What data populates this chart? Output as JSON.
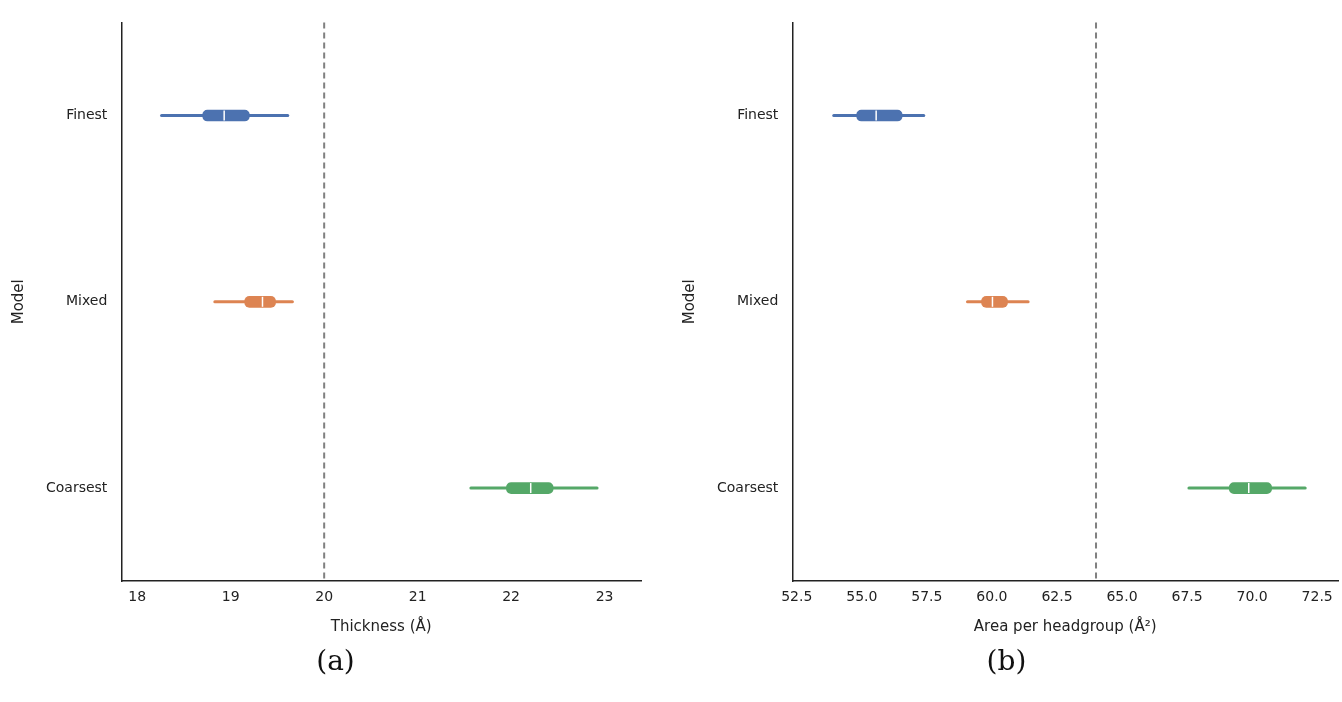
{
  "chart_data": [
    {
      "type": "box",
      "orientation": "horizontal",
      "title": "(a)",
      "xlabel": "Thickness (Å)",
      "ylabel": "Model",
      "categories": [
        "Finest",
        "Mixed",
        "Coarsest"
      ],
      "series": [
        {
          "color": "#4c72b0",
          "boxes": [
            {
              "low": 18.26,
              "q1": 18.7,
              "median": 18.93,
              "q3": 19.2,
              "high": 19.61
            },
            null,
            null
          ]
        },
        {
          "color": "#dd8452",
          "boxes": [
            null,
            {
              "low": 18.83,
              "q1": 19.15,
              "median": 19.34,
              "q3": 19.48,
              "high": 19.66
            },
            null
          ]
        },
        {
          "color": "#55a868",
          "boxes": [
            null,
            null,
            {
              "low": 21.57,
              "q1": 21.95,
              "median": 22.21,
              "q3": 22.45,
              "high": 22.92
            }
          ]
        }
      ],
      "xlim": [
        17.83,
        23.39
      ],
      "xticks": [
        18,
        19,
        20,
        21,
        22,
        23
      ],
      "ref_lines": [
        {
          "axis": "x",
          "value": 20,
          "color": "#808080",
          "line_style": "dashed"
        }
      ],
      "grid": false,
      "legend": false
    },
    {
      "type": "box",
      "orientation": "horizontal",
      "title": "(b)",
      "xlabel": "Area per headgroup (Å²)",
      "ylabel": "Model",
      "categories": [
        "Finest",
        "Mixed",
        "Coarsest"
      ],
      "series": [
        {
          "color": "#4c72b0",
          "boxes": [
            {
              "low": 53.92,
              "q1": 54.8,
              "median": 55.55,
              "q3": 56.55,
              "high": 57.38
            },
            null,
            null
          ]
        },
        {
          "color": "#dd8452",
          "boxes": [
            null,
            {
              "low": 59.06,
              "q1": 59.6,
              "median": 60.02,
              "q3": 60.6,
              "high": 61.39
            },
            null
          ]
        },
        {
          "color": "#55a868",
          "boxes": [
            null,
            null,
            {
              "low": 67.57,
              "q1": 69.12,
              "median": 69.87,
              "q3": 70.75,
              "high": 72.04
            }
          ]
        }
      ],
      "xlim": [
        52.33,
        73.3
      ],
      "xticks": [
        {
          "value": 52.5,
          "label": "52.5"
        },
        {
          "value": 55,
          "label": "55.0"
        },
        {
          "value": 57.5,
          "label": "57.5"
        },
        {
          "value": 60,
          "label": "60.0"
        },
        {
          "value": 62.5,
          "label": "62.5"
        },
        {
          "value": 65,
          "label": "65.0"
        },
        {
          "value": 67.5,
          "label": "67.5"
        },
        {
          "value": 70,
          "label": "70.0"
        },
        {
          "value": 72.5,
          "label": "72.5"
        }
      ],
      "ref_lines": [
        {
          "axis": "x",
          "value": 64,
          "color": "#808080",
          "line_style": "dashed"
        }
      ],
      "grid": false,
      "legend": false
    }
  ]
}
